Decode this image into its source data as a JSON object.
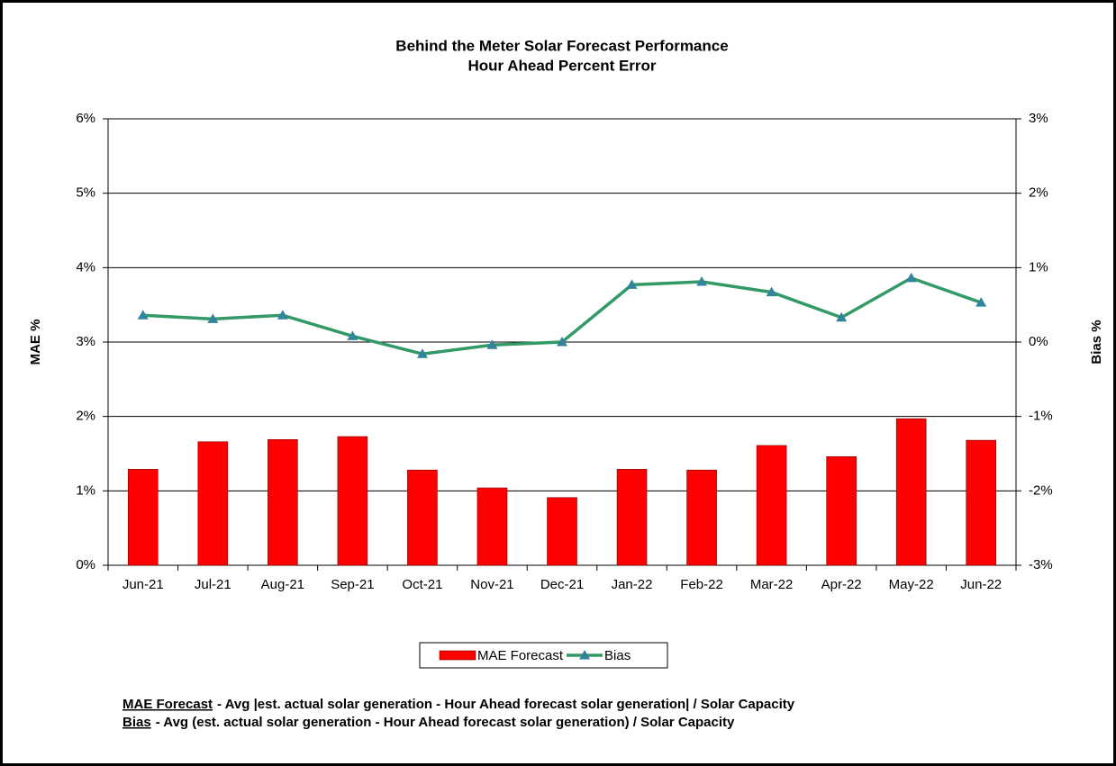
{
  "chart_data": {
    "type": "combo",
    "title": "Behind the Meter Solar Forecast Performance",
    "subtitle": "Hour Ahead Percent Error",
    "ylabel": "MAE %",
    "y2label": "Bias %",
    "categories": [
      "Jun-21",
      "Jul-21",
      "Aug-21",
      "Sep-21",
      "Oct-21",
      "Nov-21",
      "Dec-21",
      "Jan-22",
      "Feb-22",
      "Mar-22",
      "Apr-22",
      "May-22",
      "Jun-22"
    ],
    "series": [
      {
        "name": "MAE Forecast",
        "type": "bar",
        "color": "#ff0000",
        "values": [
          1.29,
          1.66,
          1.69,
          1.73,
          1.28,
          1.04,
          0.91,
          1.29,
          1.28,
          1.61,
          1.46,
          1.97,
          1.68
        ]
      },
      {
        "name": "Bias",
        "type": "line",
        "axis": "y2",
        "color": "#339966",
        "marker_color": "#31849b",
        "values": [
          0.36,
          0.31,
          0.36,
          0.08,
          -0.16,
          -0.04,
          0.0,
          0.77,
          0.81,
          0.67,
          0.33,
          0.86,
          0.53
        ]
      }
    ],
    "ylim": [
      0,
      6
    ],
    "yticks": [
      {
        "value": 0,
        "label": "0%"
      },
      {
        "value": 1,
        "label": "1%"
      },
      {
        "value": 2,
        "label": "2%"
      },
      {
        "value": 3,
        "label": "3%"
      },
      {
        "value": 4,
        "label": "4%"
      },
      {
        "value": 5,
        "label": "5%"
      },
      {
        "value": 6,
        "label": "6%"
      }
    ],
    "y2lim": [
      -3,
      3
    ],
    "y2ticks": [
      {
        "value": -3,
        "label": "-3%"
      },
      {
        "value": -2,
        "label": "-2%"
      },
      {
        "value": -1,
        "label": "-1%"
      },
      {
        "value": 0,
        "label": "0%"
      },
      {
        "value": 1,
        "label": "1%"
      },
      {
        "value": 2,
        "label": "2%"
      },
      {
        "value": 3,
        "label": "3%"
      }
    ],
    "grid": true,
    "legend": "bottom",
    "notes": [
      {
        "term": "MAE Forecast",
        "text": "- Avg |est. actual solar generation - Hour Ahead forecast solar generation| / Solar Capacity"
      },
      {
        "term": "Bias",
        "text": "- Avg (est. actual solar generation - Hour Ahead forecast solar generation) / Solar Capacity"
      }
    ]
  }
}
